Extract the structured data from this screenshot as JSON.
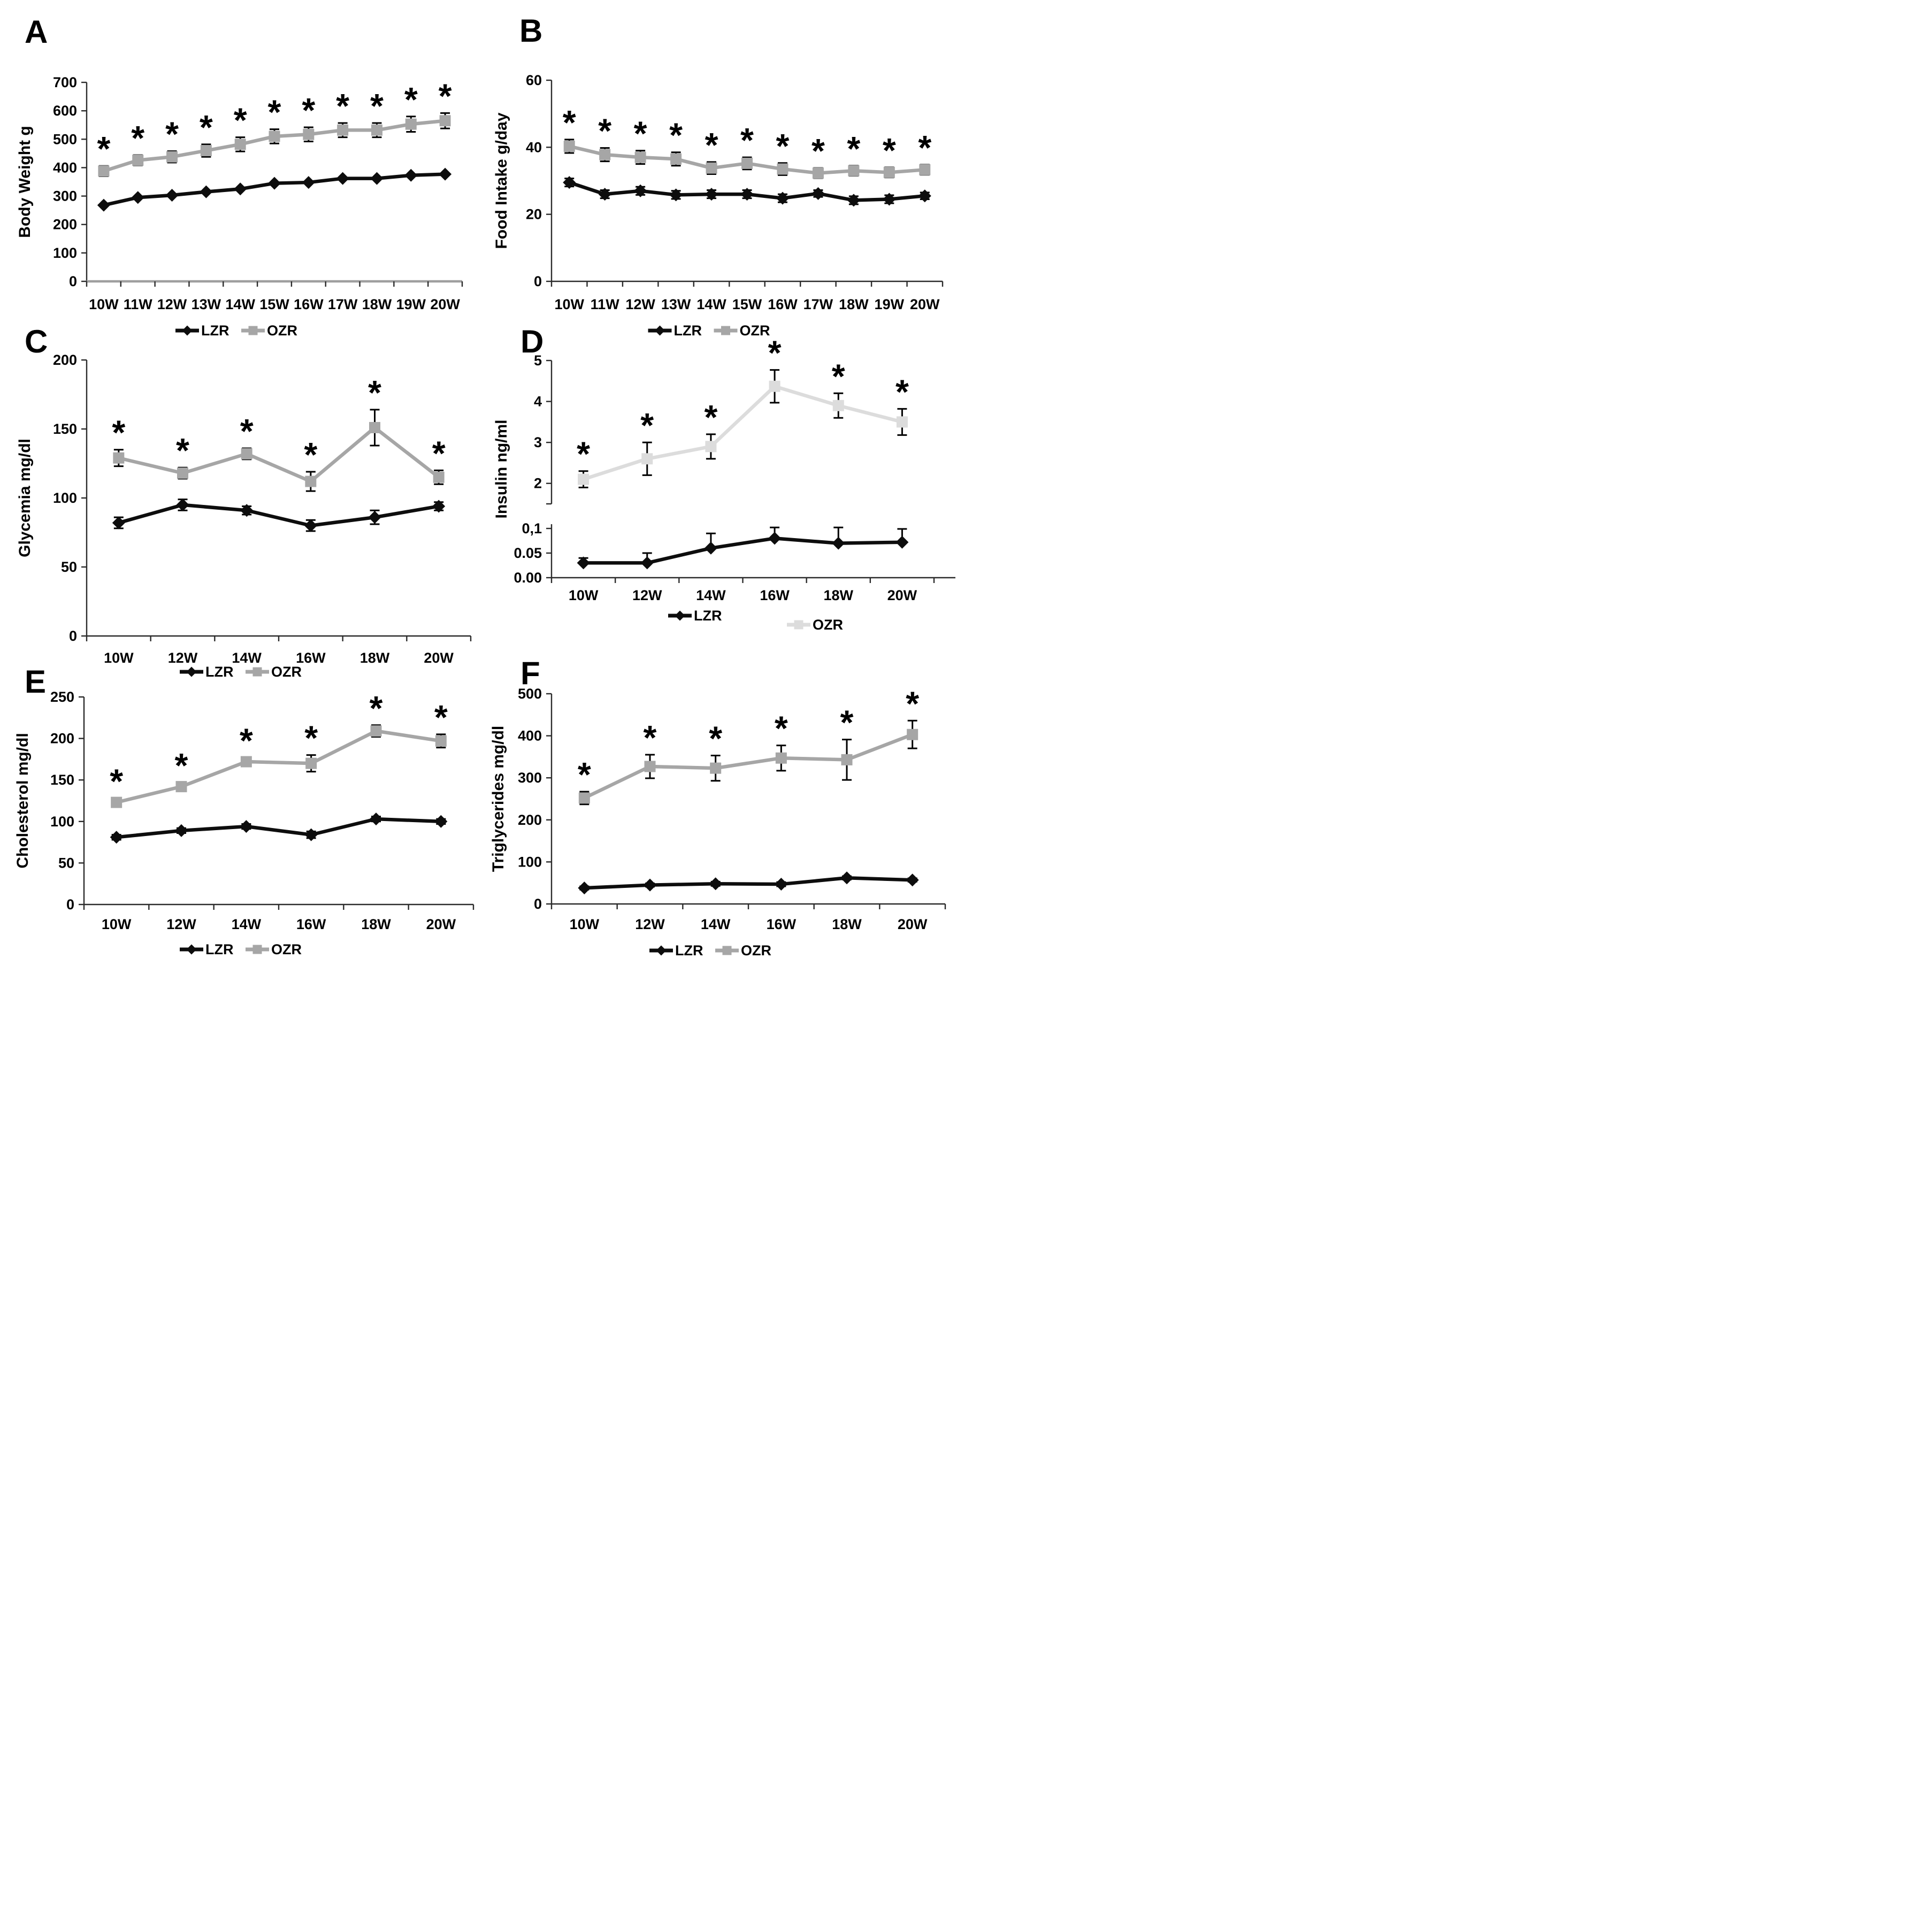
{
  "figure": {
    "background": "#ffffff",
    "description": "Six-panel line figure comparing LZR and OZR rats from 10 to 20 weeks"
  },
  "colors": {
    "lzr": "#0d0d0d",
    "ozr": "#a6a6a6",
    "ozr_light": "#dcdcdc",
    "error_bar": "#000000",
    "axis": "#2b2b2b",
    "axis_gray": "#9f9f9f"
  },
  "legend": {
    "lzr_label": "LZR",
    "ozr_label": "OZR"
  },
  "significance_marker": "*",
  "chart_data": [
    {
      "panel": "A",
      "type": "line",
      "ylabel": "Body Weight g",
      "ylim": [
        0,
        700
      ],
      "yticks": [
        "0",
        "100",
        "200",
        "300",
        "400",
        "500",
        "600",
        "700"
      ],
      "ytick_values": [
        0,
        100,
        200,
        300,
        400,
        500,
        600,
        700
      ],
      "categories": [
        "10W",
        "11W",
        "12W",
        "13W",
        "14W",
        "15W",
        "16W",
        "17W",
        "18W",
        "19W",
        "20W"
      ],
      "grid": false,
      "legend_position": "bottom-center",
      "series": [
        {
          "name": "OZR",
          "marker": "square",
          "color_key": "ozr",
          "stars": true,
          "values": [
            388,
            426,
            438,
            460,
            482,
            510,
            517,
            532,
            532,
            553,
            565
          ],
          "err": [
            18,
            18,
            20,
            22,
            25,
            25,
            25,
            25,
            25,
            27,
            27
          ]
        },
        {
          "name": "LZR",
          "marker": "diamond",
          "color_key": "lzr",
          "stars": false,
          "values": [
            268,
            295,
            303,
            315,
            325,
            345,
            348,
            362,
            362,
            373,
            377
          ],
          "err": null
        }
      ]
    },
    {
      "panel": "B",
      "type": "line",
      "ylabel": "Food Intake  g/day",
      "ylim": [
        0,
        60
      ],
      "yticks": [
        "0",
        "20",
        "40",
        "60"
      ],
      "ytick_values": [
        0,
        20,
        40,
        60
      ],
      "categories": [
        "10W",
        "11W",
        "12W",
        "13W",
        "14W",
        "15W",
        "16W",
        "17W",
        "18W",
        "19W",
        "20W"
      ],
      "grid": false,
      "legend_position": "bottom-center",
      "series": [
        {
          "name": "OZR",
          "marker": "square",
          "color_key": "ozr",
          "stars": true,
          "values": [
            40.3,
            37.8,
            37,
            36.5,
            33.8,
            35.2,
            33.5,
            32.3,
            33,
            32.5,
            33.3
          ],
          "err": [
            2,
            2,
            2,
            2,
            1.8,
            1.8,
            1.8,
            1.5,
            1.5,
            1.5,
            1.5
          ]
        },
        {
          "name": "LZR",
          "marker": "diamond",
          "color_key": "lzr",
          "stars": false,
          "values": [
            29.5,
            26,
            27,
            25.8,
            26,
            26,
            24.8,
            26.2,
            24.2,
            24.5,
            25.5
          ],
          "err": [
            1.2,
            1.2,
            1.2,
            1.2,
            1.2,
            1.2,
            1.2,
            1,
            1.2,
            1.2,
            1
          ]
        }
      ]
    },
    {
      "panel": "C",
      "type": "line",
      "ylabel": "Glycemia  mg/dl",
      "ylim": [
        0,
        200
      ],
      "yticks": [
        "0",
        "50",
        "100",
        "150",
        "200"
      ],
      "ytick_values": [
        0,
        50,
        100,
        150,
        200
      ],
      "categories": [
        "10W",
        "12W",
        "14W",
        "16W",
        "18W",
        "20W"
      ],
      "grid": false,
      "legend_position": "bottom-center",
      "series": [
        {
          "name": "OZR",
          "marker": "square",
          "color_key": "ozr",
          "stars": true,
          "values": [
            129,
            118,
            132,
            112,
            151,
            115
          ],
          "err": [
            6,
            4,
            4,
            7,
            13,
            5
          ]
        },
        {
          "name": "LZR",
          "marker": "diamond",
          "color_key": "lzr",
          "stars": false,
          "values": [
            82,
            95,
            91,
            80,
            86,
            94
          ],
          "err": [
            4,
            4,
            3,
            4,
            5,
            3
          ]
        }
      ]
    },
    {
      "panel": "D",
      "type": "line-broken-axis",
      "ylabel": "Insulin   ng/ml",
      "axis_upper": {
        "ylim": [
          1.5,
          5
        ],
        "yticks": [
          "2",
          "3",
          "4",
          "5"
        ],
        "ytick_values": [
          2,
          3,
          4,
          5
        ]
      },
      "axis_lower": {
        "ylim": [
          0,
          0.1
        ],
        "yticks": [
          "0.00",
          "0.05",
          "0,1"
        ],
        "ytick_values": [
          0,
          0.05,
          0.1
        ]
      },
      "categories": [
        "10W",
        "12W",
        "14W",
        "16W",
        "18W",
        "20W"
      ],
      "grid": false,
      "legend_position": "bottom-split",
      "series": [
        {
          "name": "OZR",
          "axis": "upper",
          "marker": "square",
          "color_key": "ozr_light",
          "stars": true,
          "values": [
            2.1,
            2.6,
            2.9,
            4.37,
            3.9,
            3.5
          ],
          "err": [
            0.2,
            0.4,
            0.3,
            0.4,
            0.3,
            0.32
          ]
        },
        {
          "name": "LZR",
          "axis": "lower",
          "marker": "diamond",
          "color_key": "lzr",
          "stars": false,
          "values": [
            0.03,
            0.03,
            0.06,
            0.08,
            0.07,
            0.072
          ],
          "err_up": [
            0.01,
            0.02,
            0.03,
            0.022,
            0.032,
            0.027
          ]
        }
      ]
    },
    {
      "panel": "E",
      "type": "line",
      "ylabel": "Cholesterol   mg/dl",
      "ylim": [
        0,
        250
      ],
      "yticks": [
        "0",
        "50",
        "100",
        "150",
        "200",
        "250"
      ],
      "ytick_values": [
        0,
        50,
        100,
        150,
        200,
        250
      ],
      "categories": [
        "10W",
        "12W",
        "14W",
        "16W",
        "18W",
        "20W"
      ],
      "grid": false,
      "legend_position": "bottom-center",
      "series": [
        {
          "name": "OZR",
          "marker": "square",
          "color_key": "ozr",
          "stars": true,
          "values": [
            123,
            142,
            172,
            170,
            209,
            197
          ],
          "err": [
            5,
            5,
            5,
            10,
            7,
            8
          ]
        },
        {
          "name": "LZR",
          "marker": "diamond",
          "color_key": "lzr",
          "stars": false,
          "values": [
            81,
            89,
            94,
            84,
            103,
            100
          ],
          "err": [
            3,
            3,
            3,
            4,
            3,
            3
          ]
        }
      ]
    },
    {
      "panel": "F",
      "type": "line",
      "ylabel": "Triglycerides mg/dl",
      "ylim": [
        0,
        500
      ],
      "yticks": [
        "0",
        "100",
        "200",
        "300",
        "400",
        "500"
      ],
      "ytick_values": [
        0,
        100,
        200,
        300,
        400,
        500
      ],
      "categories": [
        "10W",
        "12W",
        "14W",
        "16W",
        "18W",
        "20W"
      ],
      "grid": false,
      "legend_position": "bottom-center",
      "series": [
        {
          "name": "OZR",
          "marker": "square",
          "color_key": "ozr",
          "stars": true,
          "values": [
            252,
            327,
            323,
            347,
            343,
            403
          ],
          "err": [
            15,
            28,
            30,
            30,
            48,
            33
          ]
        },
        {
          "name": "LZR",
          "marker": "diamond",
          "color_key": "lzr",
          "stars": false,
          "values": [
            38,
            45,
            48,
            47,
            62,
            57
          ],
          "err": [
            4,
            4,
            5,
            5,
            4,
            4
          ]
        }
      ]
    }
  ]
}
